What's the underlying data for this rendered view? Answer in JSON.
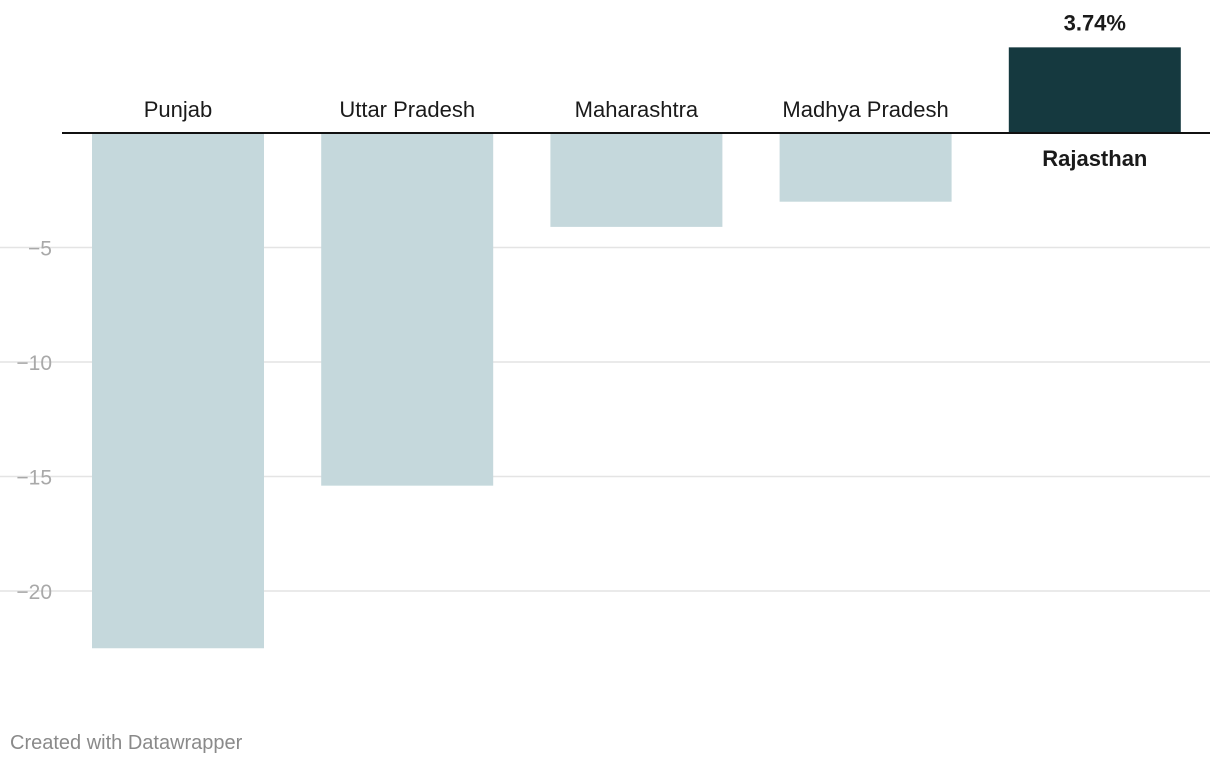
{
  "chart_data": {
    "type": "bar",
    "categories": [
      "Punjab",
      "Uttar Pradesh",
      "Maharashtra",
      "Madhya Pradesh",
      "Rajasthan"
    ],
    "values": [
      -22.5,
      -15.4,
      -4.1,
      -3.0,
      3.74
    ],
    "highlight_index": 4,
    "highlight_label": "3.74%",
    "yticks": [
      -5,
      -10,
      -15,
      -20
    ],
    "ytick_labels": [
      "−5",
      "−10",
      "−15",
      "−20"
    ],
    "ylim": [
      -22.5,
      3.74
    ],
    "grid": true,
    "colors": {
      "bar": "#c5d8dc",
      "highlight_bar": "#15393f"
    }
  },
  "footer": {
    "credit": "Created with Datawrapper"
  }
}
